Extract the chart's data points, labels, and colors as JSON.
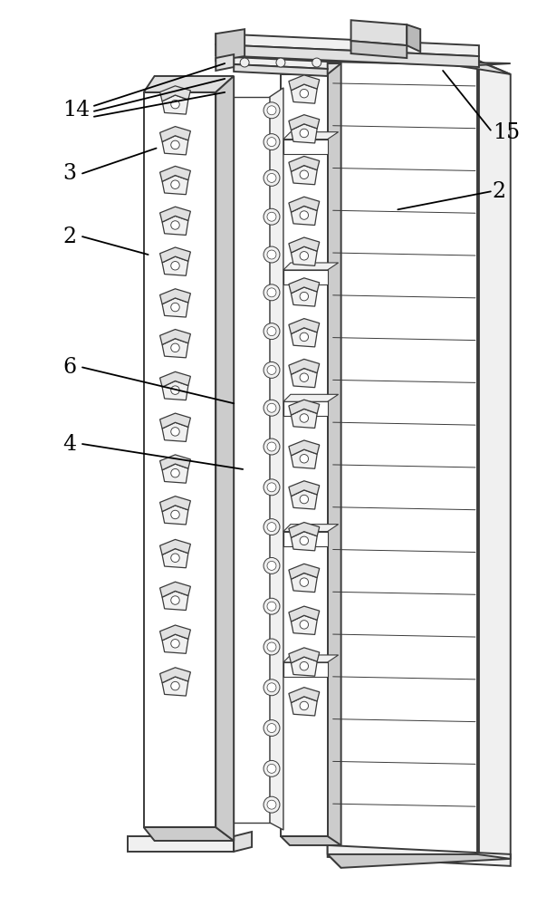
{
  "bg_color": "#ffffff",
  "lc": "#3a3a3a",
  "lw_main": 1.4,
  "lw_thin": 0.8,
  "lw_med": 1.0,
  "fig_w": 5.93,
  "fig_h": 10.0,
  "fill_white": "#ffffff",
  "fill_light": "#f0f0f0",
  "fill_mid": "#e0e0e0",
  "fill_dark": "#cccccc",
  "fill_vdark": "#b8b8b8",
  "nut_face": "#d8d8d8",
  "nut_top": "#eeeeee",
  "nut_side": "#c0c0c0"
}
